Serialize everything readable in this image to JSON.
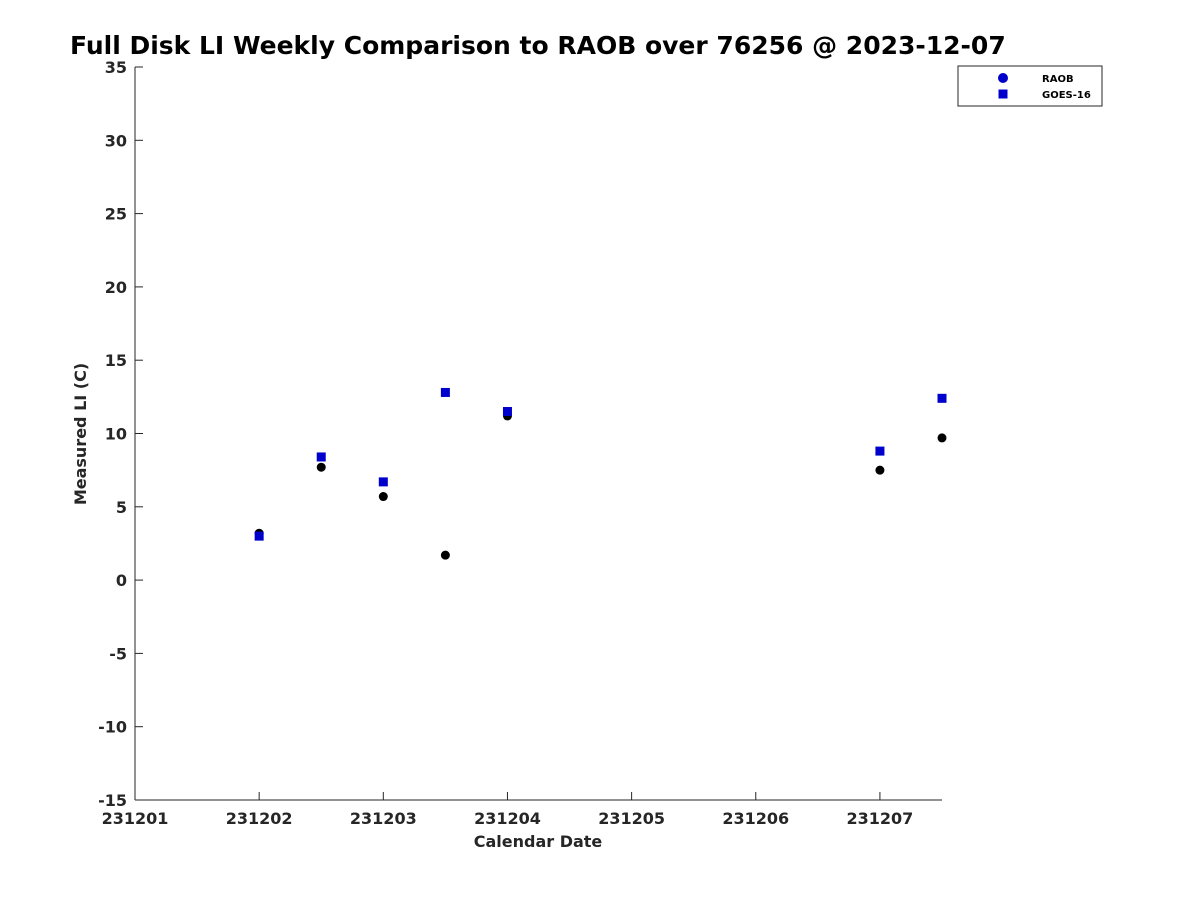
{
  "chart_data": {
    "type": "scatter",
    "title": "Full Disk LI Weekly Comparison to RAOB over 76256 @ 2023-12-07",
    "xlabel": "Calendar Date",
    "ylabel": "Measured LI (C)",
    "xlim": [
      "2023-12-01",
      "2023-12-07 12:00"
    ],
    "ylim": [
      -15,
      35
    ],
    "x_ticks": [
      "231201",
      "231202",
      "231203",
      "231204",
      "231205",
      "231206",
      "231207"
    ],
    "y_ticks": [
      35,
      30,
      25,
      20,
      15,
      10,
      5,
      0,
      -5,
      -10,
      -15
    ],
    "grid": false,
    "legend_position": "top-right",
    "series": [
      {
        "name": "RAOB",
        "marker": "circle",
        "marker_color": "#000000",
        "legend_color": "#0000cc",
        "x": [
          "2023-12-02 00:00",
          "2023-12-02 12:00",
          "2023-12-03 00:00",
          "2023-12-03 12:00",
          "2023-12-04 00:00",
          "2023-12-07 00:00",
          "2023-12-07 12:00"
        ],
        "y": [
          3.2,
          7.7,
          5.7,
          1.7,
          11.2,
          7.5,
          9.7
        ]
      },
      {
        "name": "GOES-16",
        "marker": "square",
        "marker_color": "#0000cc",
        "legend_color": "#0000cc",
        "x": [
          "2023-12-02 00:00",
          "2023-12-02 12:00",
          "2023-12-03 00:00",
          "2023-12-03 12:00",
          "2023-12-04 00:00",
          "2023-12-07 00:00",
          "2023-12-07 12:00"
        ],
        "y": [
          3.0,
          8.4,
          6.7,
          12.8,
          11.5,
          8.8,
          12.4
        ]
      }
    ]
  }
}
